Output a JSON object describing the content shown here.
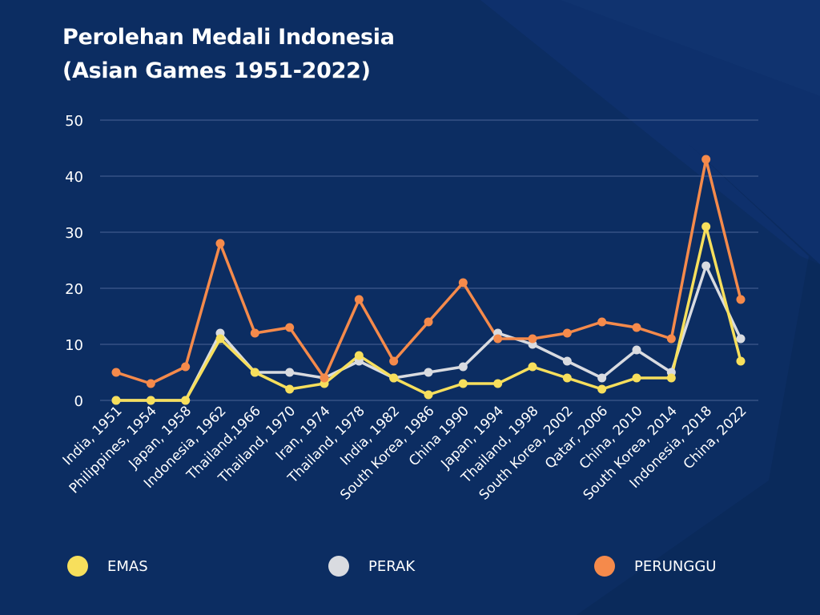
{
  "chart_data": {
    "type": "line",
    "title": "Perolehan Medali Indonesia\n(Asian Games 1951-2022)",
    "title_lines": [
      "Perolehan Medali Indonesia",
      "(Asian Games 1951-2022)"
    ],
    "xlabel": "",
    "ylabel": "",
    "ylim": [
      0,
      50
    ],
    "yticks": [
      0,
      10,
      20,
      30,
      40,
      50
    ],
    "grid": true,
    "legend_position": "bottom",
    "categories": [
      "India, 1951",
      "Philippines, 1954",
      "Japan, 1958",
      "Indonesia, 1962",
      "Thailand,1966",
      "Thailand, 1970",
      "Iran, 1974",
      "Thailand, 1978",
      "India, 1982",
      "South Korea, 1986",
      "China 1990",
      "Japan, 1994",
      "Thailand, 1998",
      "South Korea, 2002",
      "Qatar, 2006",
      "China, 2010",
      "South Korea, 2014",
      "Indonesia, 2018",
      "China, 2022"
    ],
    "series": [
      {
        "name": "EMAS",
        "color": "#f7df5c",
        "values": [
          0,
          0,
          0,
          11,
          5,
          2,
          3,
          8,
          4,
          1,
          3,
          3,
          6,
          4,
          2,
          4,
          4,
          31,
          7
        ]
      },
      {
        "name": "PERAK",
        "color": "#d9dbe0",
        "values": [
          0,
          0,
          0,
          12,
          5,
          5,
          4,
          7,
          4,
          5,
          6,
          12,
          10,
          7,
          4,
          9,
          5,
          24,
          11
        ]
      },
      {
        "name": "PERUNGGU",
        "color": "#f58a4b",
        "values": [
          5,
          3,
          6,
          28,
          12,
          13,
          4,
          18,
          7,
          14,
          21,
          11,
          11,
          12,
          14,
          13,
          11,
          43,
          18
        ]
      }
    ]
  },
  "colors": {
    "background": "#0c2d62",
    "grid": "#4a6496",
    "text": "#ffffff"
  }
}
